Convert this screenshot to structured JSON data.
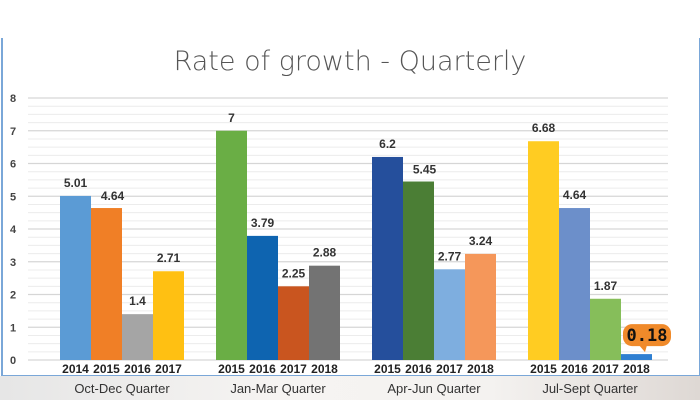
{
  "chart_data": {
    "type": "bar",
    "title": "Rate of growth - Quarterly",
    "ylim": [
      0,
      8
    ],
    "yticks": [
      0,
      1,
      2,
      3,
      4,
      5,
      6,
      7,
      8
    ],
    "grid": true,
    "groups": [
      {
        "name": "Oct-Dec Quarter",
        "bars": [
          {
            "year": "2014",
            "value": 5.01,
            "label": "5.01",
            "color": "#5b9bd5"
          },
          {
            "year": "2015",
            "value": 4.64,
            "label": "4.64",
            "color": "#f07f26"
          },
          {
            "year": "2016",
            "value": 1.4,
            "label": "1.4",
            "color": "#a5a5a5"
          },
          {
            "year": "2017",
            "value": 2.71,
            "label": "2.71",
            "color": "#ffc012"
          }
        ]
      },
      {
        "name": "Jan-Mar Quarter",
        "bars": [
          {
            "year": "2015",
            "value": 7,
            "label": "7",
            "color": "#6aae45"
          },
          {
            "year": "2016",
            "value": 3.79,
            "label": "3.79",
            "color": "#0e64b0"
          },
          {
            "year": "2017",
            "value": 2.25,
            "label": "2.25",
            "color": "#c9551f"
          },
          {
            "year": "2018",
            "value": 2.88,
            "label": "2.88",
            "color": "#737373"
          }
        ]
      },
      {
        "name": "Apr-Jun Quarter",
        "bars": [
          {
            "year": "2015",
            "value": 6.2,
            "label": "6.2",
            "color": "#254f9c"
          },
          {
            "year": "2016",
            "value": 5.45,
            "label": "5.45",
            "color": "#4b7e35"
          },
          {
            "year": "2017",
            "value": 2.77,
            "label": "2.77",
            "color": "#7eaedf"
          },
          {
            "year": "2018",
            "value": 3.24,
            "label": "3.24",
            "color": "#f5975a"
          }
        ]
      },
      {
        "name": "Jul-Sept Quarter",
        "bars": [
          {
            "year": "2015",
            "value": 6.68,
            "label": "6.68",
            "color": "#ffcc22"
          },
          {
            "year": "2016",
            "value": 4.64,
            "label": "4.64",
            "color": "#6c8fca"
          },
          {
            "year": "2017",
            "value": 1.87,
            "label": "1.87",
            "color": "#86be5a"
          },
          {
            "year": "2018",
            "value": 0.18,
            "label": "0.18",
            "color": "#2f7fd1",
            "highlight": "#f08a2a"
          }
        ]
      }
    ]
  }
}
